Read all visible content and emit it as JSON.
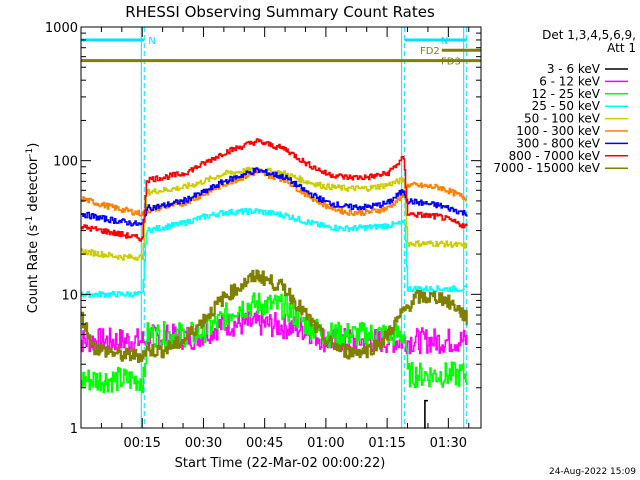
{
  "chart_data": {
    "type": "line",
    "title": "RHESSI Observing Summary Count Rates",
    "xlabel": "Start Time (22-Mar-02 00:00:22)",
    "ylabel_main": "Count Rate (s",
    "ylabel_sup1": "-1",
    "ylabel_mid": " detector",
    "ylabel_sup2": "-1",
    "ylabel_end": ")",
    "y_scale": "log",
    "ylim": [
      1,
      1000
    ],
    "xlim_min": [
      0,
      98
    ],
    "x_ticks": [
      {
        "t": 15,
        "label": "00:15"
      },
      {
        "t": 30,
        "label": "00:30"
      },
      {
        "t": 45,
        "label": "00:45"
      },
      {
        "t": 60,
        "label": "01:00"
      },
      {
        "t": 75,
        "label": "01:15"
      },
      {
        "t": 90,
        "label": "01:30"
      }
    ],
    "y_ticks": [
      {
        "v": 1,
        "label": "1"
      },
      {
        "v": 10,
        "label": "10"
      },
      {
        "v": 100,
        "label": "100"
      },
      {
        "v": 1000,
        "label": "1000"
      }
    ],
    "detectors_label": "Det 1,3,4,5,6,9,",
    "attenuator_label": "Att 1",
    "legend_placement": "right",
    "vertical_markers_min": [
      15.5,
      79.3,
      94.5
    ],
    "annotations": [
      {
        "label": "N",
        "color": "#00e0ff",
        "y": 800,
        "x": [
          0,
          15.5
        ]
      },
      {
        "label": "N",
        "color": "#00e0ff",
        "y": 800,
        "x": [
          79.3,
          94.5
        ]
      },
      {
        "label": "FD2",
        "color": "#808000",
        "y": 670,
        "x": [
          88.4,
          98
        ]
      },
      {
        "label": "FD3",
        "color": "#808000",
        "y": 560,
        "x": [
          0,
          98
        ]
      }
    ],
    "series": [
      {
        "name": "3 - 6 keV",
        "color": "#000000",
        "points": [
          [
            84,
            1
          ],
          [
            84,
            1.6
          ],
          [
            85,
            1.6
          ],
          [
            85,
            1
          ]
        ]
      },
      {
        "name": "6 - 12 keV",
        "color": "#ff00ff",
        "points": [
          [
            0,
            4.5
          ],
          [
            15.5,
            4.5
          ],
          [
            16,
            4.8
          ],
          [
            28,
            4.8
          ],
          [
            35,
            6
          ],
          [
            45,
            6
          ],
          [
            55,
            5.5
          ],
          [
            60,
            4.5
          ],
          [
            79.3,
            4.5
          ],
          [
            80,
            4.5
          ],
          [
            94.5,
            4.5
          ]
        ]
      },
      {
        "name": "12 - 25 keV",
        "color": "#00ff00",
        "points": [
          [
            0,
            2.3
          ],
          [
            15.5,
            2.3
          ],
          [
            16,
            5
          ],
          [
            28,
            5
          ],
          [
            33,
            6
          ],
          [
            38,
            8
          ],
          [
            44,
            8.5
          ],
          [
            50,
            8
          ],
          [
            55,
            6
          ],
          [
            60,
            5
          ],
          [
            79.3,
            5
          ],
          [
            80,
            2.5
          ],
          [
            94.5,
            2.5
          ]
        ]
      },
      {
        "name": "25 - 50 keV",
        "color": "#00ffff",
        "points": [
          [
            0,
            10
          ],
          [
            15,
            10
          ],
          [
            16,
            30
          ],
          [
            25,
            34
          ],
          [
            30,
            38
          ],
          [
            35,
            41
          ],
          [
            43,
            42
          ],
          [
            50,
            39
          ],
          [
            55,
            35
          ],
          [
            60,
            32
          ],
          [
            65,
            31
          ],
          [
            72,
            32
          ],
          [
            79.3,
            34
          ],
          [
            80,
            11
          ],
          [
            94.5,
            11
          ]
        ]
      },
      {
        "name": "50 - 100 keV",
        "color": "#cccc00",
        "points": [
          [
            0,
            21
          ],
          [
            5,
            20
          ],
          [
            10,
            19
          ],
          [
            15,
            19
          ],
          [
            16,
            58
          ],
          [
            25,
            63
          ],
          [
            30,
            70
          ],
          [
            35,
            80
          ],
          [
            43,
            86
          ],
          [
            50,
            80
          ],
          [
            55,
            70
          ],
          [
            60,
            64
          ],
          [
            65,
            62
          ],
          [
            70,
            62
          ],
          [
            75,
            66
          ],
          [
            79,
            72
          ],
          [
            80,
            24
          ],
          [
            88,
            24
          ],
          [
            94.5,
            23
          ]
        ]
      },
      {
        "name": "100 - 300 keV",
        "color": "#ff8000",
        "points": [
          [
            0,
            52
          ],
          [
            5,
            47
          ],
          [
            10,
            43
          ],
          [
            15,
            40
          ],
          [
            16,
            42
          ],
          [
            20,
            45
          ],
          [
            25,
            48
          ],
          [
            30,
            56
          ],
          [
            35,
            67
          ],
          [
            43,
            82
          ],
          [
            50,
            72
          ],
          [
            55,
            56
          ],
          [
            60,
            46
          ],
          [
            65,
            41
          ],
          [
            70,
            41
          ],
          [
            75,
            44
          ],
          [
            79,
            55
          ],
          [
            80,
            66
          ],
          [
            88,
            63
          ],
          [
            94.5,
            52
          ]
        ]
      },
      {
        "name": "300 - 800 keV",
        "color": "#0000ff",
        "points": [
          [
            0,
            40
          ],
          [
            5,
            37
          ],
          [
            10,
            35
          ],
          [
            15,
            33
          ],
          [
            16,
            44
          ],
          [
            20,
            46
          ],
          [
            25,
            50
          ],
          [
            30,
            58
          ],
          [
            35,
            70
          ],
          [
            43,
            85
          ],
          [
            50,
            75
          ],
          [
            55,
            59
          ],
          [
            60,
            49
          ],
          [
            65,
            45
          ],
          [
            70,
            45
          ],
          [
            75,
            48
          ],
          [
            79,
            60
          ],
          [
            80,
            50
          ],
          [
            88,
            46
          ],
          [
            94.5,
            40
          ]
        ]
      },
      {
        "name": "800 - 7000 keV",
        "color": "#ff0000",
        "points": [
          [
            0,
            32
          ],
          [
            5,
            30
          ],
          [
            10,
            28
          ],
          [
            15,
            26
          ],
          [
            16,
            72
          ],
          [
            20,
            75
          ],
          [
            25,
            80
          ],
          [
            30,
            95
          ],
          [
            35,
            115
          ],
          [
            43,
            140
          ],
          [
            50,
            122
          ],
          [
            55,
            96
          ],
          [
            60,
            80
          ],
          [
            65,
            75
          ],
          [
            70,
            75
          ],
          [
            75,
            80
          ],
          [
            79,
            105
          ],
          [
            80,
            40
          ],
          [
            88,
            38
          ],
          [
            94.5,
            32
          ]
        ]
      },
      {
        "name": "7000 - 15000 keV",
        "color": "#808000",
        "points": [
          [
            0,
            7
          ],
          [
            3,
            4
          ],
          [
            10,
            3.5
          ],
          [
            15,
            3.5
          ],
          [
            16,
            3.8
          ],
          [
            20,
            3.8
          ],
          [
            25,
            4.5
          ],
          [
            30,
            6.5
          ],
          [
            35,
            9.5
          ],
          [
            43,
            14
          ],
          [
            50,
            11
          ],
          [
            55,
            7
          ],
          [
            60,
            4.5
          ],
          [
            65,
            3.7
          ],
          [
            70,
            3.8
          ],
          [
            74,
            4.5
          ],
          [
            79,
            7.5
          ],
          [
            82,
            9.5
          ],
          [
            88,
            9.5
          ],
          [
            92,
            8
          ],
          [
            94.5,
            6.5
          ]
        ]
      }
    ]
  },
  "footer": {
    "timestamp": "24-Aug-2022 15:09"
  }
}
